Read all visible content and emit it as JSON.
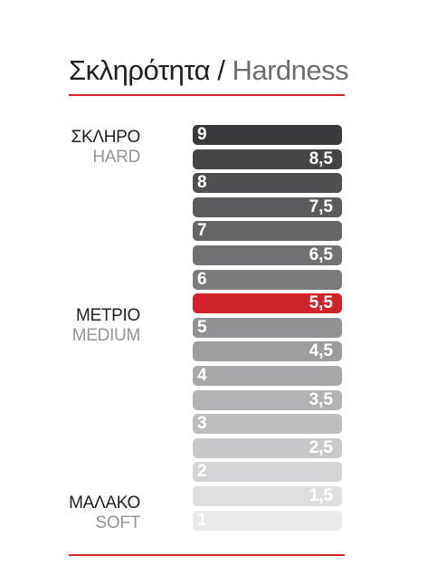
{
  "title": {
    "greek": "Σκληρότητα",
    "separator": "/",
    "english": "Hardness"
  },
  "labels": [
    {
      "greek": "ΣΚΛΗΡΟ",
      "english": "HARD"
    },
    {
      "greek": "ΜΕΤΡΙΟ",
      "english": "MEDIUM"
    },
    {
      "greek": "ΜΑΛΑΚΟ",
      "english": "SOFT"
    }
  ],
  "scale": [
    {
      "value": "9",
      "color": "#3a3a3c"
    },
    {
      "value": "8,5",
      "color": "#454547"
    },
    {
      "value": "8",
      "color": "#505052"
    },
    {
      "value": "7,5",
      "color": "#5b5b5d"
    },
    {
      "value": "7",
      "color": "#666668"
    },
    {
      "value": "6,5",
      "color": "#717173"
    },
    {
      "value": "6",
      "color": "#7c7c7e"
    },
    {
      "value": "5,5",
      "color": "#d1232a",
      "highlight": true
    },
    {
      "value": "5",
      "color": "#929294"
    },
    {
      "value": "4,5",
      "color": "#9d9d9f"
    },
    {
      "value": "4",
      "color": "#a8a8aa"
    },
    {
      "value": "3,5",
      "color": "#b3b3b5"
    },
    {
      "value": "3",
      "color": "#bebec0"
    },
    {
      "value": "2,5",
      "color": "#c9c9cb"
    },
    {
      "value": "2",
      "color": "#d4d4d6"
    },
    {
      "value": "1,5",
      "color": "#dfdfe1"
    },
    {
      "value": "1",
      "color": "#eaeaec"
    }
  ]
}
